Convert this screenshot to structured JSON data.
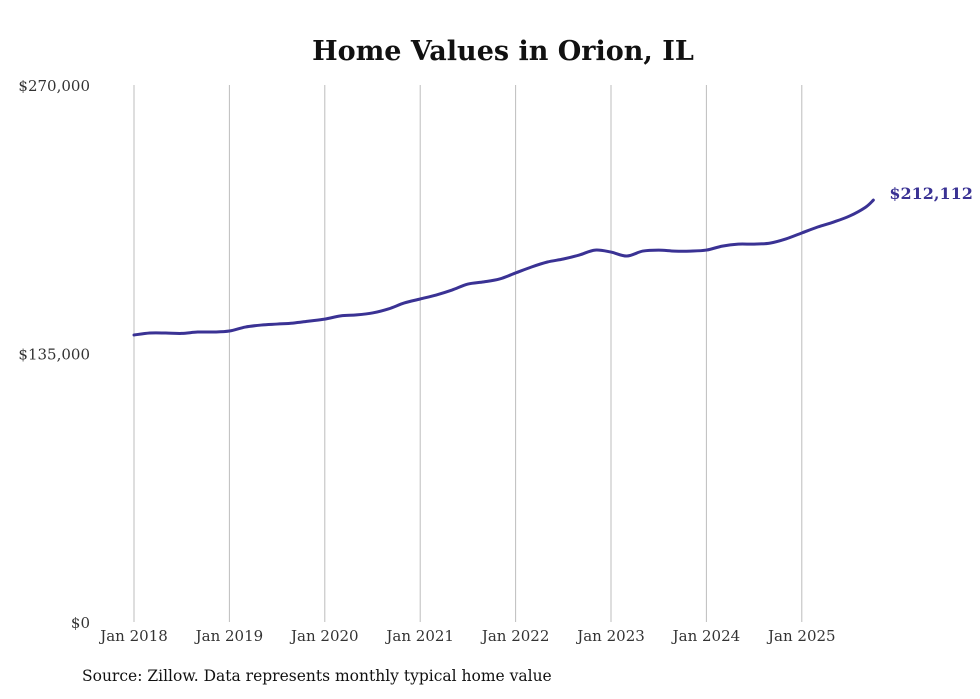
{
  "chart_data": {
    "type": "line",
    "title": "Home Values in Orion, IL",
    "xlabel": "",
    "ylabel": "",
    "ylim": [
      0,
      270000
    ],
    "y_ticks": [
      {
        "value": 0,
        "label": "$0"
      },
      {
        "value": 135000,
        "label": "$135,000"
      },
      {
        "value": 270000,
        "label": "$270,000"
      }
    ],
    "x_ticks": [
      "Jan 2018",
      "Jan 2019",
      "Jan 2020",
      "Jan 2021",
      "Jan 2022",
      "Jan 2023",
      "Jan 2024",
      "Jan 2025"
    ],
    "grid": "vertical",
    "series": [
      {
        "name": "Typical home value",
        "color": "#3a3294",
        "x": [
          "2018-01",
          "2018-03",
          "2018-05",
          "2018-07",
          "2018-09",
          "2018-11",
          "2019-01",
          "2019-03",
          "2019-05",
          "2019-07",
          "2019-09",
          "2019-11",
          "2020-01",
          "2020-03",
          "2020-05",
          "2020-07",
          "2020-09",
          "2020-11",
          "2021-01",
          "2021-03",
          "2021-05",
          "2021-07",
          "2021-09",
          "2021-11",
          "2022-01",
          "2022-03",
          "2022-05",
          "2022-07",
          "2022-09",
          "2022-11",
          "2023-01",
          "2023-03",
          "2023-05",
          "2023-07",
          "2023-09",
          "2023-11",
          "2024-01",
          "2024-03",
          "2024-05",
          "2024-07",
          "2024-09",
          "2024-11",
          "2025-01",
          "2025-03",
          "2025-05",
          "2025-07",
          "2025-09",
          "2025-10"
        ],
        "values": [
          144300,
          145300,
          145300,
          145100,
          145800,
          145800,
          146300,
          148300,
          149300,
          149800,
          150300,
          151300,
          152300,
          153900,
          154400,
          155400,
          157400,
          160400,
          162400,
          164400,
          166900,
          169900,
          171000,
          172500,
          175500,
          178500,
          181000,
          182500,
          184500,
          187000,
          186000,
          184000,
          186500,
          187000,
          186500,
          186500,
          187000,
          189000,
          190000,
          190000,
          190500,
          192600,
          195600,
          198600,
          201100,
          204100,
          208500,
          212112
        ]
      }
    ],
    "end_label": "$212,112"
  },
  "source": "Source: Zillow. Data represents monthly typical home value"
}
